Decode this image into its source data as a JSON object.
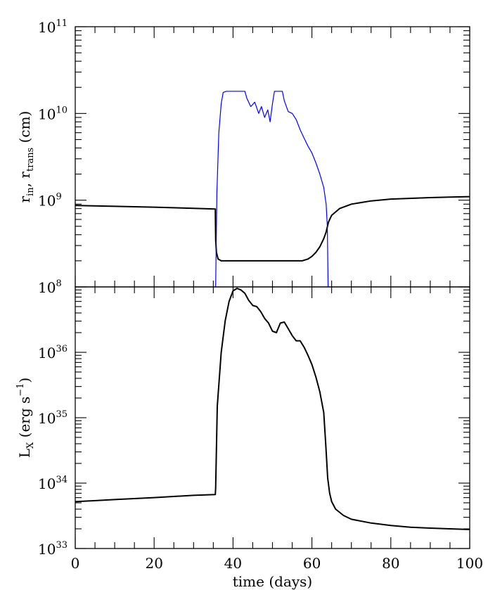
{
  "chart_data": [
    {
      "type": "line",
      "panel": "top",
      "ylabel_parts": [
        "r",
        "in",
        ", r",
        "trans",
        " (cm)"
      ],
      "yscale": "log",
      "ylim": [
        100000000.0,
        100000000000.0
      ],
      "yticks": [
        {
          "base": "10",
          "exp": "8"
        },
        {
          "base": "10",
          "exp": "9"
        },
        {
          "base": "10",
          "exp": "10"
        },
        {
          "base": "10",
          "exp": "11"
        }
      ],
      "xlim": [
        0,
        100
      ],
      "series": [
        {
          "color": "#000000",
          "x": [
            0,
            10,
            20,
            30,
            35.5,
            35.6,
            35.8,
            36.2,
            37,
            40,
            45,
            50,
            55,
            57.5,
            59,
            60,
            61,
            62,
            63,
            63.6,
            64.2,
            65,
            67,
            70,
            75,
            80,
            90,
            100
          ],
          "y": [
            870000000.0,
            850000000.0,
            830000000.0,
            805000000.0,
            790000000.0,
            350000000.0,
            250000000.0,
            210000000.0,
            200000000.0,
            200000000.0,
            200000000.0,
            200000000.0,
            200000000.0,
            200000000.0,
            210000000.0,
            225000000.0,
            250000000.0,
            290000000.0,
            360000000.0,
            430000000.0,
            560000000.0,
            670000000.0,
            800000000.0,
            900000000.0,
            980000000.0,
            1030000000.0,
            1070000000.0,
            1100000000.0
          ]
        },
        {
          "color": "#0000ff",
          "x": [
            35.6,
            35.9,
            36.4,
            37,
            37.5,
            38.3,
            43,
            43.5,
            44.5,
            45.5,
            46.5,
            47.2,
            48,
            48.8,
            49.4,
            50,
            50.5,
            51,
            52.5,
            53,
            54,
            55,
            56,
            57,
            58,
            59,
            60,
            61,
            62,
            63,
            63.6,
            63.9,
            64.1
          ],
          "y": [
            100000000.0,
            1200000000.0,
            6000000000.0,
            13000000000.0,
            17500000000.0,
            18000000000.0,
            18000000000.0,
            15000000000.0,
            12000000000.0,
            13500000000.0,
            10000000000.0,
            12000000000.0,
            9000000000.0,
            11000000000.0,
            8000000000.0,
            13000000000.0,
            18000000000.0,
            18000000000.0,
            18000000000.0,
            14000000000.0,
            10500000000.0,
            10000000000.0,
            8500000000.0,
            6500000000.0,
            5200000000.0,
            4200000000.0,
            3500000000.0,
            2700000000.0,
            2000000000.0,
            1400000000.0,
            900000000.0,
            500000000.0,
            100000000.0
          ]
        }
      ]
    },
    {
      "type": "line",
      "panel": "bottom",
      "ylabel_parts": [
        "L",
        "X",
        " (erg s",
        "−1",
        ")"
      ],
      "yscale": "log",
      "ylim": [
        1e+33,
        1e+37
      ],
      "yticks": [
        {
          "base": "10",
          "exp": "33"
        },
        {
          "base": "10",
          "exp": "34"
        },
        {
          "base": "10",
          "exp": "35"
        },
        {
          "base": "10",
          "exp": "36"
        }
      ],
      "xlabel": "time (days)",
      "xlim": [
        0,
        100
      ],
      "xticks": [
        "0",
        "20",
        "40",
        "60",
        "80",
        "100"
      ],
      "series": [
        {
          "color": "#000000",
          "x": [
            0,
            10,
            20,
            30,
            35.5,
            35.6,
            36,
            37,
            38,
            39,
            40,
            41,
            42,
            43,
            44,
            45,
            46,
            47,
            48,
            49,
            50,
            51,
            52,
            53,
            54,
            55,
            56,
            57,
            58,
            59,
            60,
            61,
            62,
            63,
            63.5,
            64,
            64.5,
            65,
            66,
            68,
            70,
            75,
            80,
            85,
            90,
            95,
            100
          ],
          "y": [
            5.2e+33,
            5.6e+33,
            6e+33,
            6.5e+33,
            6.7e+33,
            8.5e+33,
            1.5e+35,
            1e+36,
            3e+36,
            6e+36,
            8.7e+36,
            9.5e+36,
            9e+36,
            8e+36,
            6.2e+36,
            5.2e+36,
            5e+36,
            4.2e+36,
            3.3e+36,
            2.8e+36,
            2.1e+36,
            2e+36,
            2.8e+36,
            2.9e+36,
            2.3e+36,
            1.8e+36,
            1.5e+36,
            1.5e+36,
            1.2e+36,
            9e+35,
            6.5e+35,
            4.2e+35,
            2.5e+35,
            1.2e+35,
            4e+34,
            1.2e+34,
            7e+33,
            5.2e+33,
            4e+33,
            3.2e+33,
            2.8e+33,
            2.45e+33,
            2.25e+33,
            2.12e+33,
            2.05e+33,
            2e+33,
            1.95e+33
          ]
        }
      ]
    }
  ]
}
